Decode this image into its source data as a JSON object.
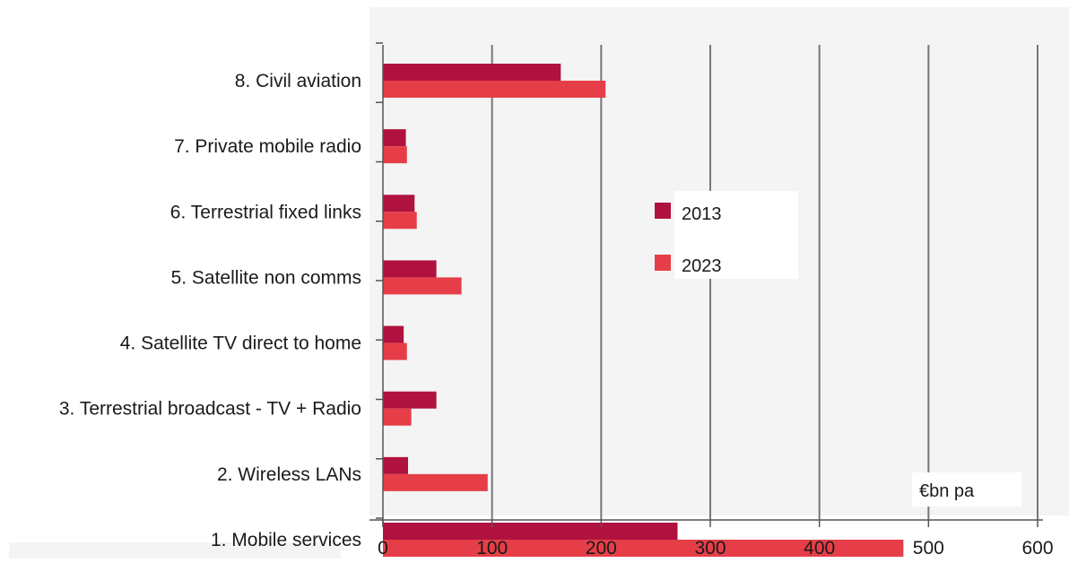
{
  "chart_data": {
    "type": "bar",
    "orientation": "horizontal",
    "categories": [
      "1. Mobile services",
      "2. Wireless LANs",
      "3. Terrestrial broadcast - TV + Radio",
      "4. Satellite TV direct to home",
      "5. Satellite non comms",
      "6. Terrestrial fixed links",
      "7. Private mobile radio",
      "8. Civil aviation"
    ],
    "series": [
      {
        "name": "2013",
        "color": "#b0123f",
        "values": [
          270,
          23,
          49,
          19,
          49,
          29,
          21,
          163
        ]
      },
      {
        "name": "2023",
        "color": "#e63e48",
        "values": [
          477,
          96,
          26,
          22,
          72,
          31,
          22,
          204
        ]
      }
    ],
    "xlim": [
      0,
      600
    ],
    "xticks": [
      "0",
      "100",
      "200",
      "300",
      "400",
      "500",
      "600"
    ],
    "unit_label": "€bn pa",
    "grid": "vertical",
    "legend_placement": "center-right",
    "title": "",
    "xlabel": "",
    "ylabel": ""
  }
}
